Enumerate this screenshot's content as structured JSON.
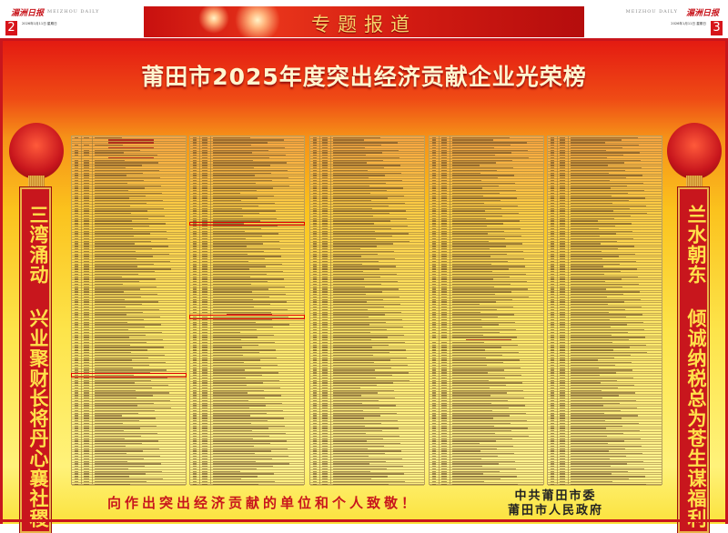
{
  "header_left": {
    "logo": "湄洲日报",
    "masthead_en": "MEIZHOU DAILY",
    "page_number": "2",
    "date": "2026年1月11日 星期日"
  },
  "header_right": {
    "logo": "湄洲日报",
    "masthead_en": "MEIZHOU DAILY",
    "page_number": "3",
    "date": "2026年1月11日 星期日"
  },
  "banner": {
    "section_title": "专题报道"
  },
  "poster": {
    "title": "莆田市2025年度突出经济贡献企业光荣榜",
    "table_header": {
      "col_index": "序号",
      "col_total": "总序号",
      "col_name": "纳税人名称"
    },
    "couplet_left": "三湾涌动 兴业聚财长将丹心襄社稷",
    "couplet_right": "兰水朝东 倾诚纳税总为苍生谋福利",
    "slogan": "向作出突出经济贡献的单位和个人致敬！",
    "signatories": [
      "中共莆田市委",
      "莆田市人民政府"
    ]
  },
  "colors": {
    "brand_red": "#c8161d",
    "gold": "#ffe14a"
  }
}
